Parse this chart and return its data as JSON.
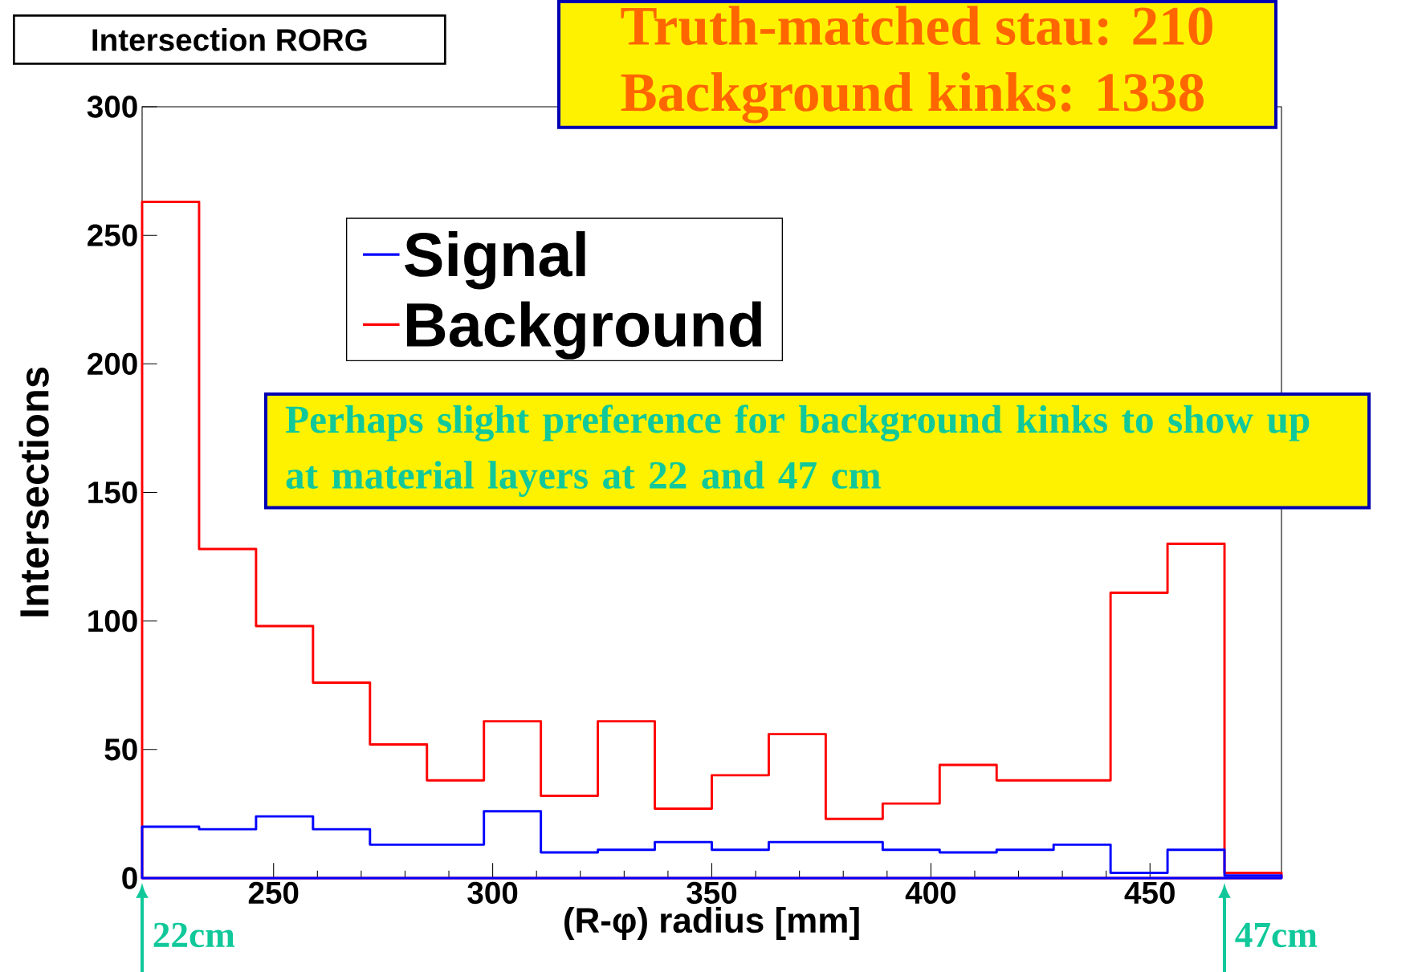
{
  "chart_data": {
    "type": "histogram",
    "title": "Intersection RORG",
    "xlabel": "(R-φ) radius [mm]",
    "ylabel": "Intersections",
    "bins": [
      220,
      233,
      246,
      259,
      272,
      285,
      298,
      311,
      324,
      337,
      350,
      363,
      376,
      389,
      402,
      415,
      428,
      441,
      454,
      467,
      480
    ],
    "series": [
      {
        "name": "Signal",
        "color": "#0000ff",
        "values": [
          20,
          19,
          24,
          19,
          13,
          13,
          26,
          10,
          11,
          14,
          11,
          14,
          14,
          11,
          10,
          11,
          13,
          2,
          11,
          1
        ]
      },
      {
        "name": "Background",
        "color": "#ff0000",
        "values": [
          263,
          128,
          98,
          76,
          52,
          38,
          61,
          32,
          61,
          27,
          40,
          56,
          23,
          29,
          44,
          38,
          38,
          111,
          130,
          2
        ]
      }
    ],
    "xlim": [
      220,
      480
    ],
    "ylim": [
      0,
      300
    ],
    "xticks": [
      250,
      300,
      350,
      400,
      450
    ],
    "yticks": [
      0,
      50,
      100,
      150,
      200,
      250,
      300
    ],
    "legend": "top",
    "grid": false,
    "annotations": [
      "Truth-matched stau: 210",
      "Background kinks: 1338",
      "Perhaps slight preference for background kinks to show up at material layers at 22 and 47 cm",
      "22cm",
      "47cm"
    ]
  }
}
